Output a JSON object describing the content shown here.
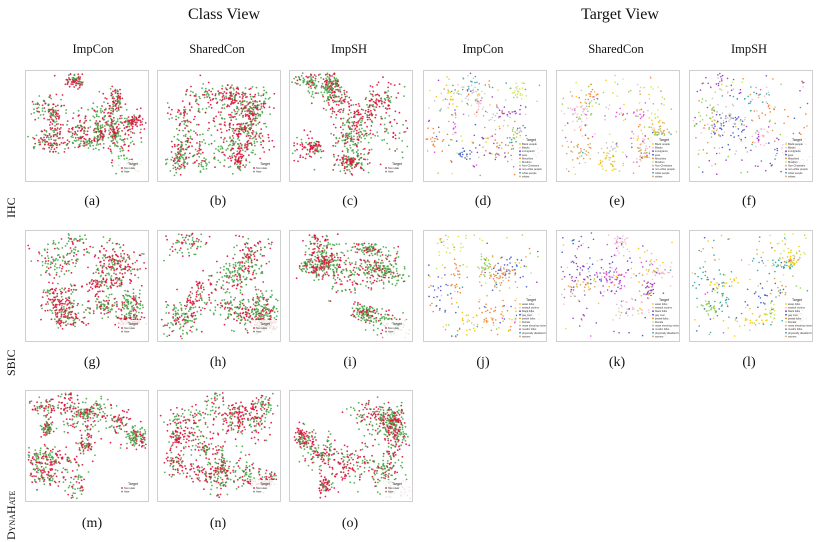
{
  "section_titles": {
    "class_view": "Class View",
    "target_view": "Target View"
  },
  "column_titles": [
    "ImpCon",
    "SharedCon",
    "ImpSH",
    "ImpCon",
    "SharedCon",
    "ImpSH"
  ],
  "row_labels": [
    "IHC",
    "SBIC",
    "DynaHate"
  ],
  "legend_title": "Target",
  "class_legend": [
    "Non-Hate",
    "Hate"
  ],
  "class_colors": {
    "Hate": "#dc143c",
    "Non-Hate": "#4aa84a"
  },
  "target_palette": [
    "#f5c400",
    "#f6b8c4",
    "#9a2fc0",
    "#3a55c8",
    "#f07a2a",
    "#c7e84a",
    "#8bd04a",
    "#e040e0",
    "#2aa0a0",
    "#d4a050",
    "#c0c0c0"
  ],
  "ihc_target_legend": [
    "Black people",
    "Blacks",
    "immigrants",
    "jews",
    "Minorities",
    "Muslims",
    "Non-Christians",
    "non-white people",
    "white people",
    "whites"
  ],
  "sbic_target_legend": [
    "asian folks",
    "assault victims",
    "black folks",
    "gay men",
    "jewish folks",
    "liberals",
    "mass shooting victims",
    "muslim folks",
    "physically disabled folks",
    "women"
  ],
  "subcaptions": [
    "(a)",
    "(b)",
    "(c)",
    "(d)",
    "(e)",
    "(f)",
    "(g)",
    "(h)",
    "(i)",
    "(j)",
    "(k)",
    "(l)",
    "(m)",
    "(n)",
    "(o)"
  ]
}
